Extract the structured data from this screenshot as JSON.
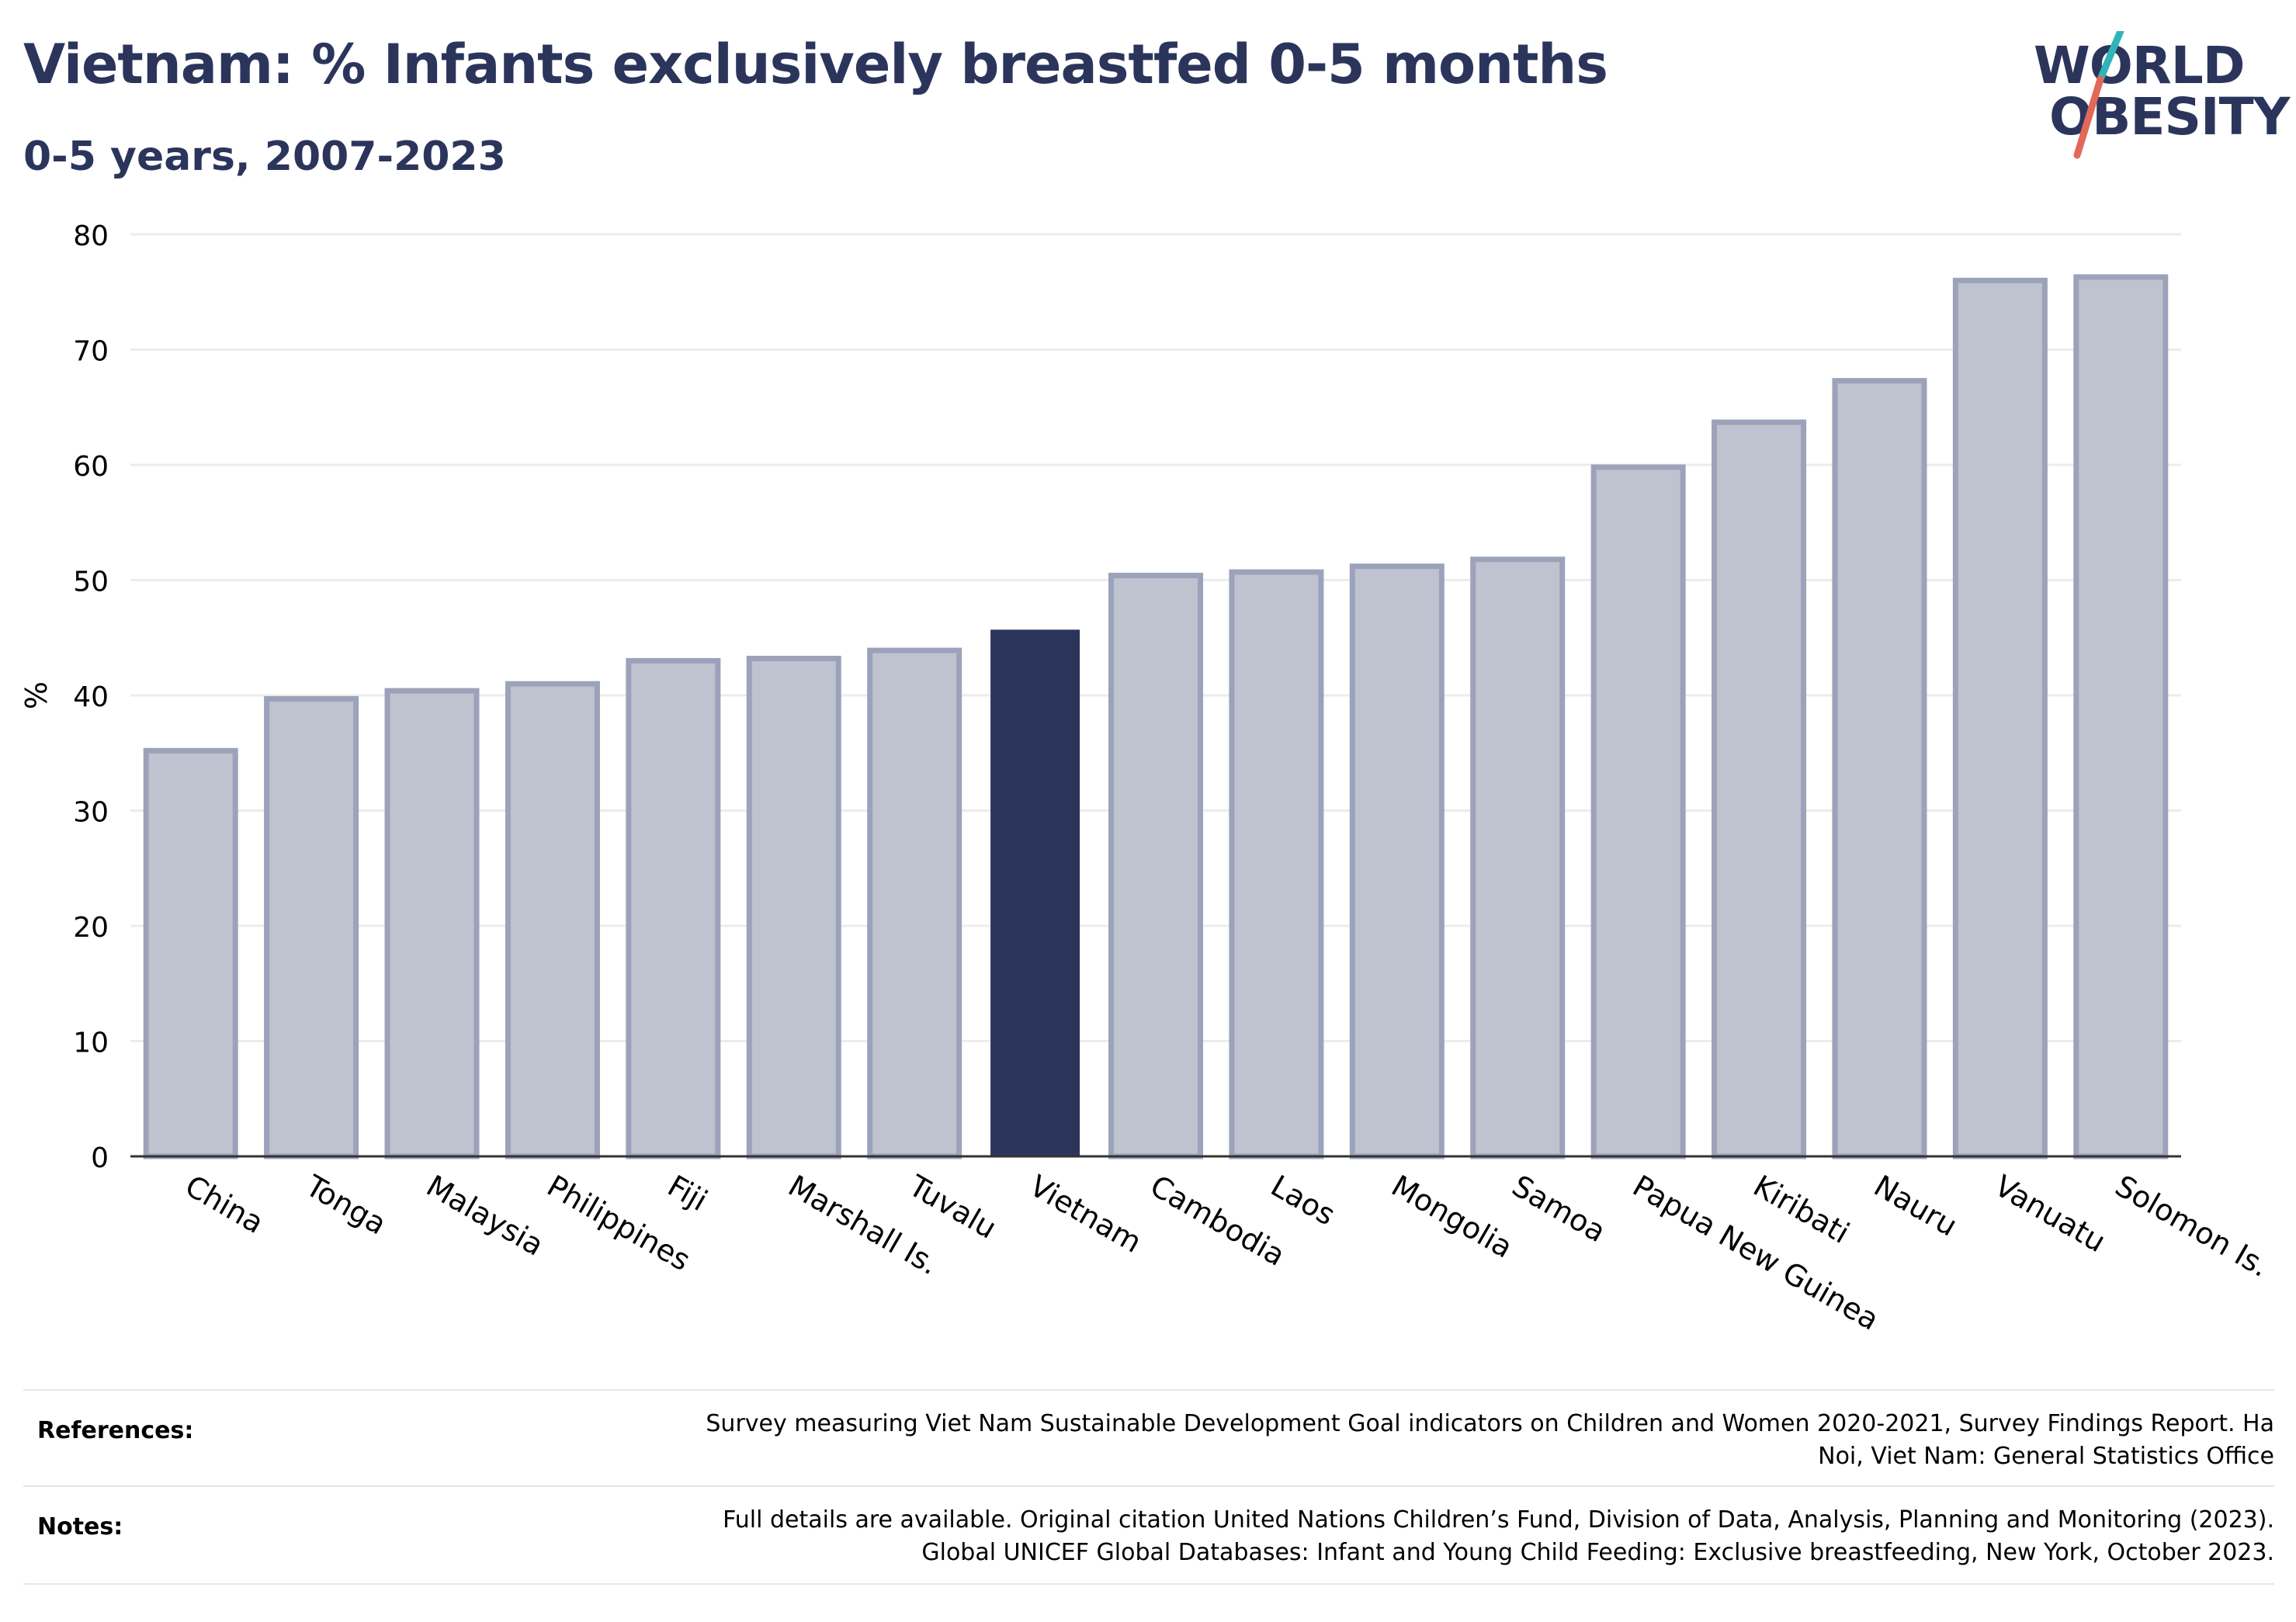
{
  "header": {
    "title": "Vietnam: % Infants exclusively breastfed 0-5 months",
    "subtitle": "0-5 years, 2007-2023"
  },
  "logo": {
    "line1": "WORLD",
    "line2": "OBESITY",
    "colors": {
      "text": "#2b355c",
      "slash_top": "#2fb5b9",
      "slash_bottom": "#e2685a"
    }
  },
  "chart_data": {
    "type": "bar",
    "ylabel": "%",
    "ylim": [
      0,
      80
    ],
    "yticks": [
      0,
      10,
      20,
      30,
      40,
      50,
      60,
      70,
      80
    ],
    "grid": true,
    "categories": [
      "China",
      "Tonga",
      "Malaysia",
      "Philippines",
      "Fiji",
      "Marshall Is.",
      "Tuvalu",
      "Vietnam",
      "Cambodia",
      "Laos",
      "Mongolia",
      "Samoa",
      "Papua New Guinea",
      "Kiribati",
      "Nauru",
      "Vanuatu",
      "Solomon Is."
    ],
    "values": [
      35.2,
      39.7,
      40.4,
      41.0,
      43.0,
      43.2,
      43.9,
      45.7,
      50.4,
      50.7,
      51.2,
      51.8,
      59.8,
      63.7,
      67.3,
      76.0,
      76.3
    ],
    "highlight": "Vietnam",
    "colors": {
      "bar": "#bfc2cf",
      "bar_edge": "#9ca2ba",
      "highlight": "#2b355c",
      "grid": "#ececec",
      "axis": "#333333"
    }
  },
  "footer": {
    "references_label": "References:",
    "references_line1": "Survey measuring Viet Nam Sustainable Development Goal indicators on Children and Women 2020-2021, Survey Findings Report. Ha",
    "references_line2": "Noi, Viet Nam: General Statistics Office",
    "notes_label": "Notes:",
    "notes_line1": "Full details are available. Original citation United Nations Children’s Fund, Division of Data, Analysis, Planning and Monitoring (2023).",
    "notes_line2": "Global UNICEF Global Databases: Infant and Young Child Feeding: Exclusive breastfeeding, New York, October 2023."
  }
}
